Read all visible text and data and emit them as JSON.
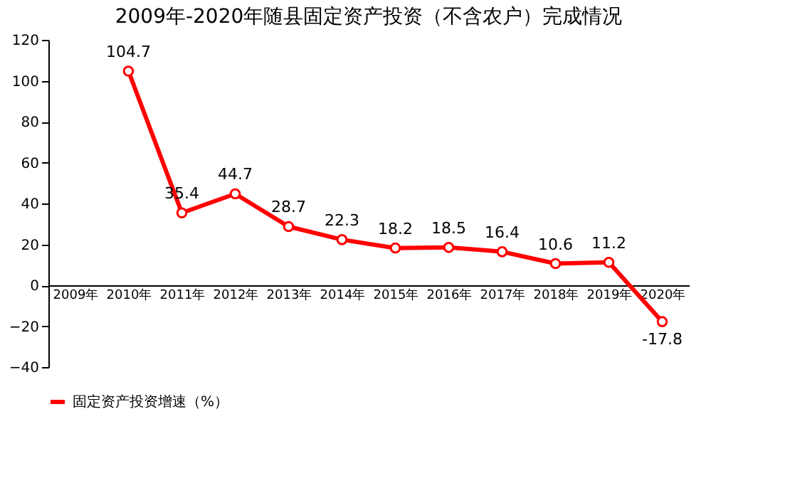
{
  "chart_data": {
    "type": "line",
    "title": "2009年-2020年随县固定资产投资（不含农户）完成情况",
    "categories": [
      "2009年",
      "2010年",
      "2011年",
      "2012年",
      "2013年",
      "2014年",
      "2015年",
      "2016年",
      "2017年",
      "2018年",
      "2019年",
      "2020年"
    ],
    "series": [
      {
        "name": "固定资产投资增速（%）",
        "color": "#ff0000",
        "values": [
          null,
          104.7,
          35.4,
          44.7,
          28.7,
          22.3,
          18.2,
          18.5,
          16.4,
          10.6,
          11.2,
          -17.8
        ]
      }
    ],
    "ylim": [
      -40,
      120
    ],
    "yticks": [
      -40,
      -20,
      0,
      20,
      40,
      60,
      80,
      100,
      120
    ],
    "data_labels": true,
    "legend": "bottom",
    "marker": "circle",
    "line_style": "solid",
    "grid": false
  }
}
